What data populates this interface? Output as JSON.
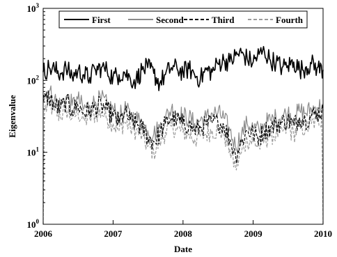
{
  "chart_data": {
    "type": "line",
    "title": "",
    "xlabel": "Date",
    "ylabel": "Eigenvalue",
    "x_range": [
      "2006-01-01",
      "2010-01-01"
    ],
    "ylim": [
      1,
      1000
    ],
    "y_scale": "log",
    "grid": false,
    "legend_position": "top",
    "x_ticks": [
      {
        "date": "2006-01-01",
        "label": "2006"
      },
      {
        "date": "2007-01-01",
        "label": "2007"
      },
      {
        "date": "2008-01-01",
        "label": "2008"
      },
      {
        "date": "2009-01-01",
        "label": "2009"
      },
      {
        "date": "2010-01-01",
        "label": "2010"
      }
    ],
    "y_ticks": [
      {
        "value": 1,
        "base": "10",
        "exp": "0"
      },
      {
        "value": 10,
        "base": "10",
        "exp": "1"
      },
      {
        "value": 100,
        "base": "10",
        "exp": "2"
      },
      {
        "value": 1000,
        "base": "10",
        "exp": "3"
      }
    ],
    "series": [
      {
        "name": "First",
        "color": "#000000",
        "dash": "solid",
        "points": [
          [
            "2006-01-01",
            130
          ],
          [
            "2006-02-01",
            150
          ],
          [
            "2006-03-01",
            140
          ],
          [
            "2006-04-01",
            125
          ],
          [
            "2006-05-01",
            145
          ],
          [
            "2006-06-01",
            115
          ],
          [
            "2006-07-01",
            135
          ],
          [
            "2006-08-01",
            120
          ],
          [
            "2006-09-01",
            110
          ],
          [
            "2006-10-01",
            140
          ],
          [
            "2006-11-01",
            150
          ],
          [
            "2006-12-01",
            135
          ],
          [
            "2007-01-01",
            110
          ],
          [
            "2007-02-01",
            120
          ],
          [
            "2007-03-01",
            130
          ],
          [
            "2007-04-01",
            105
          ],
          [
            "2007-05-01",
            100
          ],
          [
            "2007-06-01",
            140
          ],
          [
            "2007-07-01",
            150
          ],
          [
            "2007-08-01",
            125
          ],
          [
            "2007-09-01",
            90
          ],
          [
            "2007-10-01",
            120
          ],
          [
            "2007-11-01",
            150
          ],
          [
            "2007-12-01",
            145
          ],
          [
            "2008-01-01",
            130
          ],
          [
            "2008-02-01",
            145
          ],
          [
            "2008-03-01",
            120
          ],
          [
            "2008-04-01",
            105
          ],
          [
            "2008-05-01",
            140
          ],
          [
            "2008-06-01",
            130
          ],
          [
            "2008-07-01",
            170
          ],
          [
            "2008-08-01",
            190
          ],
          [
            "2008-09-01",
            180
          ],
          [
            "2008-10-01",
            220
          ],
          [
            "2008-11-01",
            240
          ],
          [
            "2008-12-01",
            200
          ],
          [
            "2009-01-01",
            180
          ],
          [
            "2009-02-01",
            230
          ],
          [
            "2009-03-01",
            250
          ],
          [
            "2009-04-01",
            190
          ],
          [
            "2009-05-01",
            180
          ],
          [
            "2009-06-01",
            150
          ],
          [
            "2009-07-01",
            160
          ],
          [
            "2009-08-01",
            180
          ],
          [
            "2009-09-01",
            140
          ],
          [
            "2009-10-01",
            150
          ],
          [
            "2009-11-01",
            170
          ],
          [
            "2009-12-01",
            150
          ],
          [
            "2010-01-01",
            140
          ]
        ]
      },
      {
        "name": "Second",
        "color": "#8a8a8a",
        "dash": "solid",
        "points": [
          [
            "2006-01-01",
            60
          ],
          [
            "2006-02-01",
            70
          ],
          [
            "2006-03-01",
            55
          ],
          [
            "2006-04-01",
            45
          ],
          [
            "2006-05-01",
            60
          ],
          [
            "2006-06-01",
            45
          ],
          [
            "2006-07-01",
            55
          ],
          [
            "2006-08-01",
            40
          ],
          [
            "2006-09-01",
            45
          ],
          [
            "2006-10-01",
            50
          ],
          [
            "2006-11-01",
            55
          ],
          [
            "2006-12-01",
            45
          ],
          [
            "2007-01-01",
            40
          ],
          [
            "2007-02-01",
            30
          ],
          [
            "2007-03-01",
            40
          ],
          [
            "2007-04-01",
            32
          ],
          [
            "2007-05-01",
            30
          ],
          [
            "2007-06-01",
            25
          ],
          [
            "2007-07-01",
            20
          ],
          [
            "2007-08-01",
            18
          ],
          [
            "2007-09-01",
            22
          ],
          [
            "2007-10-01",
            30
          ],
          [
            "2007-11-01",
            40
          ],
          [
            "2007-12-01",
            35
          ],
          [
            "2008-01-01",
            32
          ],
          [
            "2008-02-01",
            30
          ],
          [
            "2008-03-01",
            25
          ],
          [
            "2008-04-01",
            28
          ],
          [
            "2008-05-01",
            30
          ],
          [
            "2008-06-01",
            35
          ],
          [
            "2008-07-01",
            35
          ],
          [
            "2008-08-01",
            30
          ],
          [
            "2008-09-01",
            20
          ],
          [
            "2008-10-01",
            12
          ],
          [
            "2008-11-01",
            18
          ],
          [
            "2008-12-01",
            25
          ],
          [
            "2009-01-01",
            22
          ],
          [
            "2009-02-01",
            20
          ],
          [
            "2009-03-01",
            25
          ],
          [
            "2009-04-01",
            28
          ],
          [
            "2009-05-01",
            30
          ],
          [
            "2009-06-01",
            32
          ],
          [
            "2009-07-01",
            35
          ],
          [
            "2009-08-01",
            30
          ],
          [
            "2009-09-01",
            38
          ],
          [
            "2009-10-01",
            35
          ],
          [
            "2009-11-01",
            40
          ],
          [
            "2009-12-01",
            42
          ],
          [
            "2010-01-01",
            45
          ]
        ]
      },
      {
        "name": "Third",
        "color": "#000000",
        "dash": "dashed",
        "points": [
          [
            "2006-01-01",
            50
          ],
          [
            "2006-02-01",
            60
          ],
          [
            "2006-03-01",
            45
          ],
          [
            "2006-04-01",
            40
          ],
          [
            "2006-05-01",
            50
          ],
          [
            "2006-06-01",
            38
          ],
          [
            "2006-07-01",
            45
          ],
          [
            "2006-08-01",
            35
          ],
          [
            "2006-09-01",
            38
          ],
          [
            "2006-10-01",
            42
          ],
          [
            "2006-11-01",
            45
          ],
          [
            "2006-12-01",
            38
          ],
          [
            "2007-01-01",
            32
          ],
          [
            "2007-02-01",
            26
          ],
          [
            "2007-03-01",
            35
          ],
          [
            "2007-04-01",
            28
          ],
          [
            "2007-05-01",
            25
          ],
          [
            "2007-06-01",
            22
          ],
          [
            "2007-07-01",
            16
          ],
          [
            "2007-08-01",
            14
          ],
          [
            "2007-09-01",
            18
          ],
          [
            "2007-10-01",
            25
          ],
          [
            "2007-11-01",
            30
          ],
          [
            "2007-12-01",
            28
          ],
          [
            "2008-01-01",
            25
          ],
          [
            "2008-02-01",
            24
          ],
          [
            "2008-03-01",
            20
          ],
          [
            "2008-04-01",
            22
          ],
          [
            "2008-05-01",
            24
          ],
          [
            "2008-06-01",
            26
          ],
          [
            "2008-07-01",
            26
          ],
          [
            "2008-08-01",
            24
          ],
          [
            "2008-09-01",
            15
          ],
          [
            "2008-10-01",
            9
          ],
          [
            "2008-11-01",
            14
          ],
          [
            "2008-12-01",
            20
          ],
          [
            "2009-01-01",
            18
          ],
          [
            "2009-02-01",
            16
          ],
          [
            "2009-03-01",
            20
          ],
          [
            "2009-04-01",
            22
          ],
          [
            "2009-05-01",
            24
          ],
          [
            "2009-06-01",
            26
          ],
          [
            "2009-07-01",
            28
          ],
          [
            "2009-08-01",
            24
          ],
          [
            "2009-09-01",
            30
          ],
          [
            "2009-10-01",
            28
          ],
          [
            "2009-11-01",
            32
          ],
          [
            "2009-12-01",
            35
          ],
          [
            "2010-01-01",
            38
          ]
        ]
      },
      {
        "name": "Fourth",
        "color": "#9a9a9a",
        "dash": "dashed",
        "points": [
          [
            "2006-01-01",
            1
          ],
          [
            "2006-01-08",
            40
          ],
          [
            "2006-02-01",
            45
          ],
          [
            "2006-03-01",
            38
          ],
          [
            "2006-04-01",
            32
          ],
          [
            "2006-05-01",
            40
          ],
          [
            "2006-06-01",
            30
          ],
          [
            "2006-07-01",
            36
          ],
          [
            "2006-08-01",
            28
          ],
          [
            "2006-09-01",
            30
          ],
          [
            "2006-10-01",
            34
          ],
          [
            "2006-11-01",
            36
          ],
          [
            "2006-12-01",
            30
          ],
          [
            "2007-01-01",
            25
          ],
          [
            "2007-02-01",
            20
          ],
          [
            "2007-03-01",
            27
          ],
          [
            "2007-04-01",
            22
          ],
          [
            "2007-05-01",
            20
          ],
          [
            "2007-06-01",
            17
          ],
          [
            "2007-07-01",
            12
          ],
          [
            "2007-08-01",
            10
          ],
          [
            "2007-09-01",
            14
          ],
          [
            "2007-10-01",
            19
          ],
          [
            "2007-11-01",
            23
          ],
          [
            "2007-12-01",
            21
          ],
          [
            "2008-01-01",
            19
          ],
          [
            "2008-02-01",
            18
          ],
          [
            "2008-03-01",
            15
          ],
          [
            "2008-04-01",
            17
          ],
          [
            "2008-05-01",
            18
          ],
          [
            "2008-06-01",
            20
          ],
          [
            "2008-07-01",
            20
          ],
          [
            "2008-08-01",
            18
          ],
          [
            "2008-09-01",
            11
          ],
          [
            "2008-10-01",
            6
          ],
          [
            "2008-11-01",
            10
          ],
          [
            "2008-12-01",
            15
          ],
          [
            "2009-01-01",
            14
          ],
          [
            "2009-02-01",
            12
          ],
          [
            "2009-03-01",
            15
          ],
          [
            "2009-04-01",
            17
          ],
          [
            "2009-05-01",
            18
          ],
          [
            "2009-06-01",
            20
          ],
          [
            "2009-07-01",
            21
          ],
          [
            "2009-08-01",
            18
          ],
          [
            "2009-09-01",
            23
          ],
          [
            "2009-10-01",
            21
          ],
          [
            "2009-11-01",
            25
          ],
          [
            "2009-12-01",
            27
          ],
          [
            "2009-12-25",
            30
          ],
          [
            "2010-01-01",
            1
          ]
        ]
      }
    ]
  }
}
